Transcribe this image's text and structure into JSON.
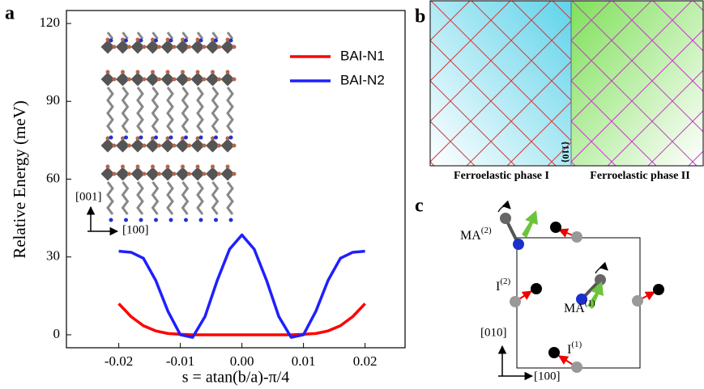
{
  "chart_data": {
    "type": "line",
    "x_label": "s = atan(b/a)-π/4",
    "y_label": "Relative Energy (meV)",
    "x": [
      -0.02,
      -0.018,
      -0.016,
      -0.014,
      -0.012,
      -0.01,
      -0.008,
      -0.006,
      -0.004,
      -0.002,
      0,
      0.002,
      0.004,
      0.006,
      0.008,
      0.01,
      0.012,
      0.014,
      0.016,
      0.018,
      0.02
    ],
    "series": [
      {
        "name": "BAI-N1",
        "color": "#ff0000",
        "values": [
          12,
          7,
          3.5,
          1.5,
          0.5,
          0.2,
          0,
          0,
          0,
          0,
          0,
          0,
          0,
          0,
          0,
          0.2,
          0.5,
          1.5,
          3.5,
          7,
          12
        ]
      },
      {
        "name": "BAI-N2",
        "color": "#1f1fff",
        "values": [
          32.2,
          31.8,
          29.5,
          21,
          9,
          0,
          -1,
          7,
          21,
          33,
          38.5,
          33,
          21,
          7,
          -1,
          0,
          9,
          21,
          29.5,
          31.8,
          32.2
        ]
      }
    ],
    "xlim": [
      -0.0285,
      0.0265
    ],
    "ylim": [
      -5,
      125
    ],
    "xticks": [
      -0.02,
      -0.01,
      {
        "value": 0,
        "label": "0.00"
      },
      0.01,
      0.02
    ],
    "yticks": [
      0,
      30,
      60,
      90,
      120
    ],
    "legend": "upper right",
    "inset_labels": [
      "[001]",
      "[100]"
    ]
  },
  "panel_labels": [
    "a",
    "b",
    "c"
  ],
  "panel_b": {
    "phase_left": "Ferroelastic phase I",
    "phase_right": "Ferroelastic phase II",
    "wall": "{110}"
  },
  "panel_c": {
    "labels": [
      {
        "base": "MA",
        "sup": "(2)"
      },
      {
        "base": "MA",
        "sup": "(1)"
      },
      {
        "base": "I",
        "sup": "(2)"
      },
      {
        "base": "I",
        "sup": "(1)"
      }
    ],
    "axes": [
      "[010]",
      "[100]"
    ]
  }
}
